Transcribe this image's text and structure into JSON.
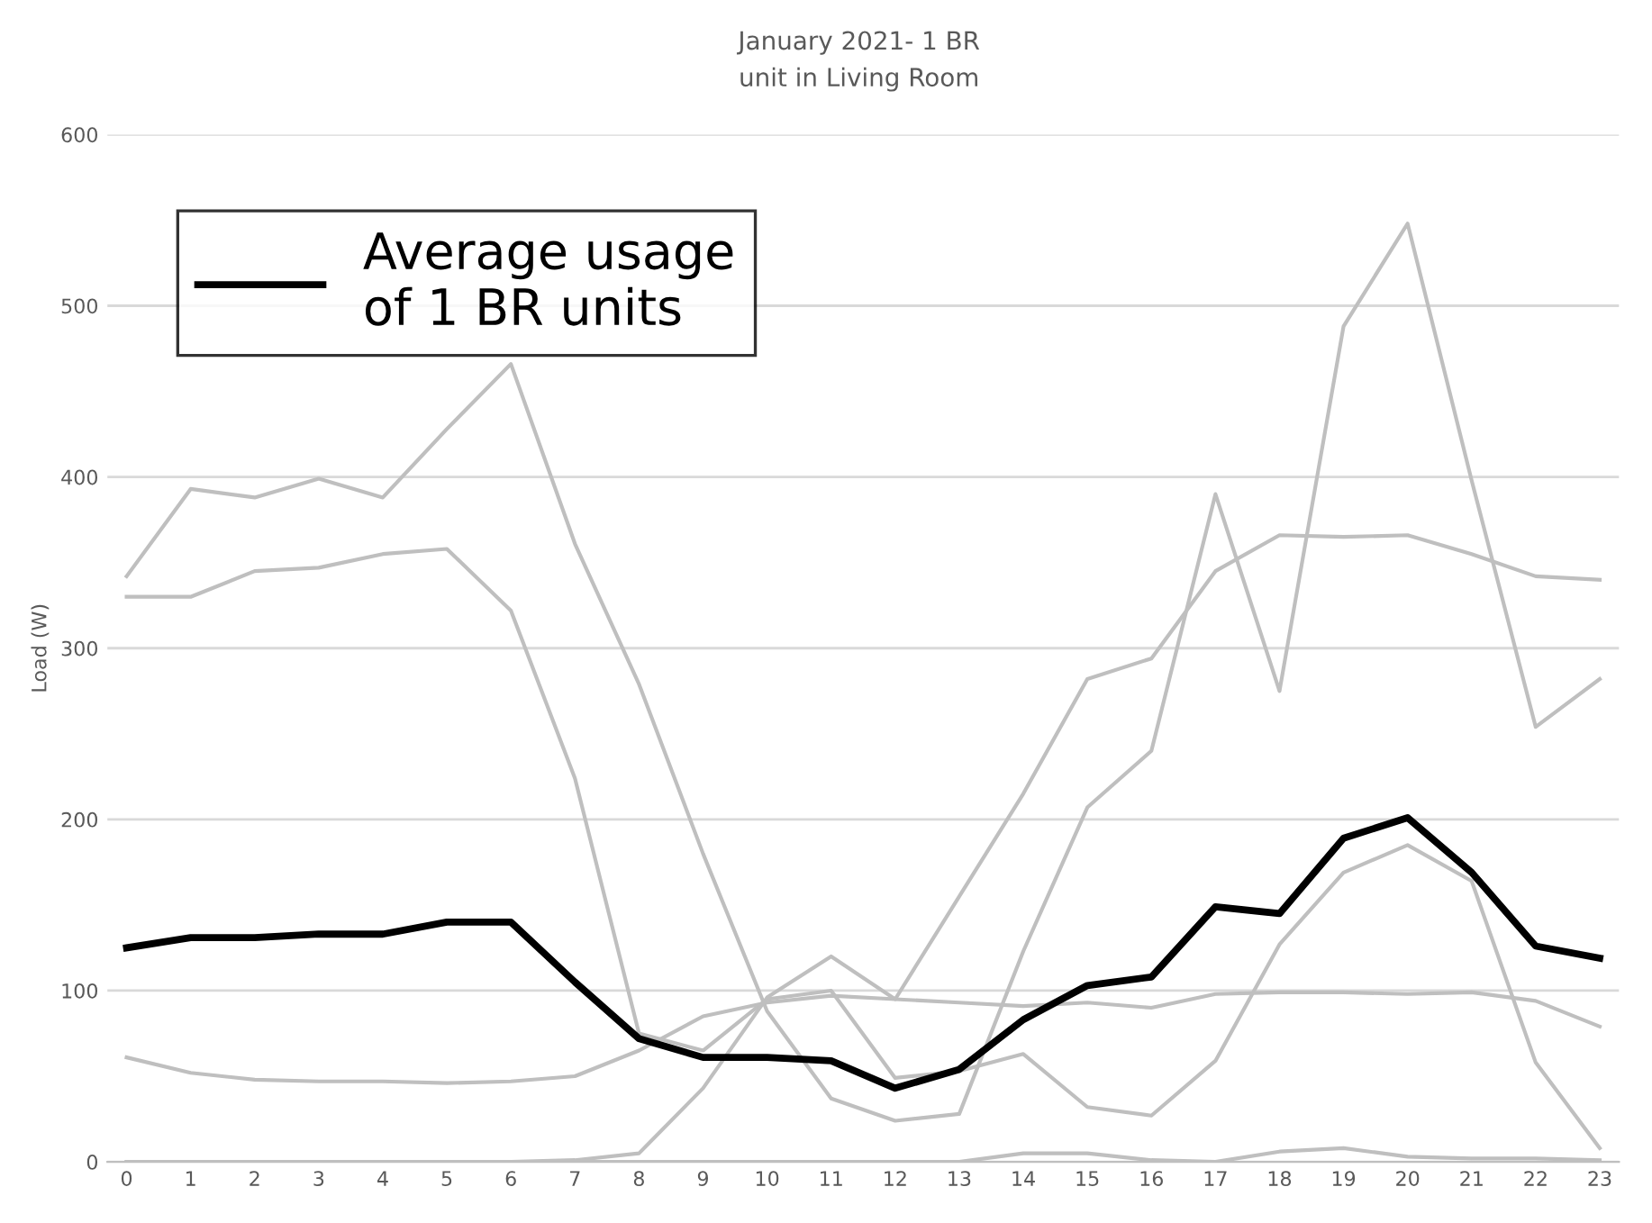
{
  "chart_data": {
    "type": "line",
    "title": "January 2021- 1 BR",
    "subtitle": "unit in Living Room",
    "ylabel": "Load (W)",
    "categories": [
      "0",
      "1",
      "2",
      "3",
      "4",
      "5",
      "6",
      "7",
      "8",
      "9",
      "10",
      "11",
      "12",
      "13",
      "14",
      "15",
      "16",
      "17",
      "18",
      "19",
      "20",
      "21",
      "22",
      "23"
    ],
    "ylim": [
      0,
      600
    ],
    "yticks": [
      0,
      100,
      200,
      300,
      400,
      500,
      600
    ],
    "grid": "y",
    "legend": "top left",
    "marker": "none",
    "line_style": "solid",
    "series": [
      {
        "color": "#bfbfbf",
        "values": [
          342,
          393,
          388,
          399,
          388,
          428,
          466,
          361,
          279,
          180,
          88,
          37,
          24,
          28,
          123,
          207,
          240,
          390,
          275,
          488,
          548,
          398,
          254,
          282
        ]
      },
      {
        "color": "#bfbfbf",
        "values": [
          330,
          330,
          345,
          347,
          355,
          358,
          322,
          224,
          75,
          65,
          95,
          100,
          49,
          53,
          63,
          32,
          27,
          59,
          127,
          169,
          185,
          164,
          58,
          8
        ]
      },
      {
        "color": "#bfbfbf",
        "values": [
          61,
          52,
          48,
          47,
          47,
          46,
          47,
          50,
          65,
          85,
          93,
          97,
          95,
          93,
          91,
          93,
          90,
          98,
          99,
          99,
          98,
          99,
          94,
          79
        ]
      },
      {
        "color": "#bfbfbf",
        "values": [
          0,
          0,
          0,
          0,
          0,
          0,
          0,
          1,
          5,
          43,
          96,
          120,
          95,
          155,
          215,
          282,
          294,
          345,
          366,
          365,
          366,
          355,
          342,
          340
        ]
      },
      {
        "color": "#bfbfbf",
        "values": [
          0,
          0,
          0,
          0,
          0,
          0,
          0,
          0,
          0,
          0,
          0,
          0,
          0,
          0,
          5,
          5,
          1,
          0,
          6,
          8,
          3,
          2,
          2,
          1
        ]
      },
      {
        "name": "Average usage\nof 1 BR units",
        "color": "#000000",
        "values": [
          125,
          131,
          131,
          133,
          133,
          140,
          140,
          105,
          72,
          61,
          61,
          59,
          43,
          54,
          83,
          103,
          108,
          149,
          145,
          189,
          201,
          169,
          126,
          119
        ]
      }
    ]
  }
}
